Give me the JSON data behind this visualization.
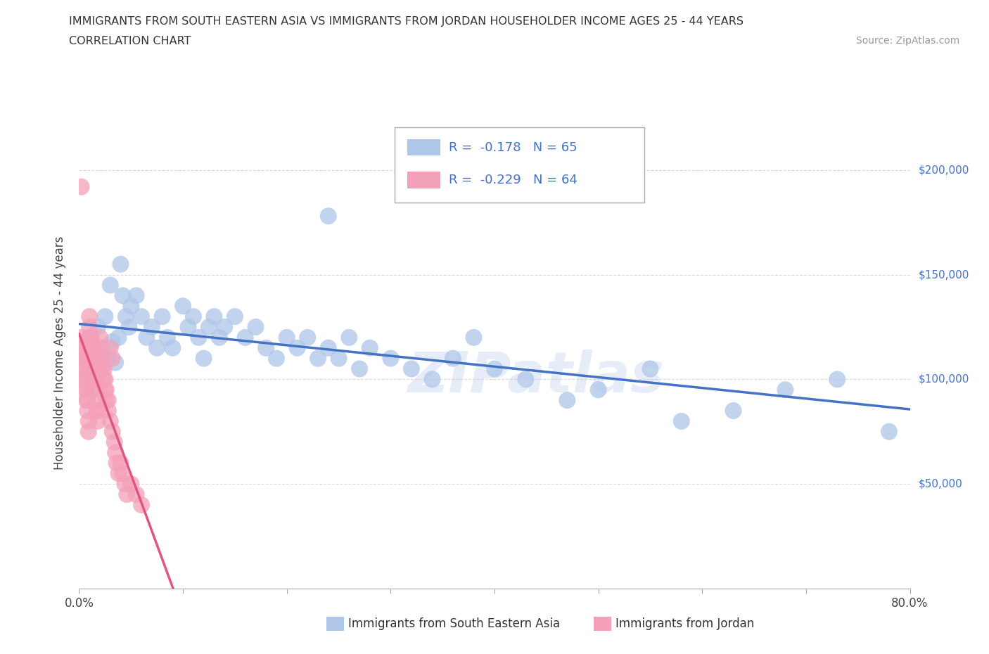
{
  "title_line1": "IMMIGRANTS FROM SOUTH EASTERN ASIA VS IMMIGRANTS FROM JORDAN HOUSEHOLDER INCOME AGES 25 - 44 YEARS",
  "title_line2": "CORRELATION CHART",
  "source_text": "Source: ZipAtlas.com",
  "ylabel": "Householder Income Ages 25 - 44 years",
  "xlim": [
    0,
    0.8
  ],
  "ylim": [
    0,
    225000
  ],
  "yticks": [
    50000,
    100000,
    150000,
    200000
  ],
  "ytick_labels": [
    "$50,000",
    "$100,000",
    "$150,000",
    "$200,000"
  ],
  "xticks": [
    0.0,
    0.1,
    0.2,
    0.3,
    0.4,
    0.5,
    0.6,
    0.7,
    0.8
  ],
  "grid_color": "#d0d0d0",
  "background_color": "#ffffff",
  "watermark_text": "ZIPatlas",
  "series1_color": "#aec6e8",
  "series2_color": "#f4a0b8",
  "series1_label": "Immigrants from South Eastern Asia",
  "series2_label": "Immigrants from Jordan",
  "series1_R": -0.178,
  "series1_N": 65,
  "series2_R": -0.229,
  "series2_N": 64,
  "series1_line_color": "#4472c4",
  "series2_line_color": "#e05580",
  "series2_line_dash_color": "#f4a0b8",
  "legend_box_color": "#4472c4",
  "tick_label_color": "#4472c4",
  "series1_x": [
    0.005,
    0.008,
    0.01,
    0.012,
    0.015,
    0.018,
    0.02,
    0.022,
    0.025,
    0.028,
    0.03,
    0.032,
    0.035,
    0.038,
    0.04,
    0.042,
    0.045,
    0.048,
    0.05,
    0.055,
    0.06,
    0.065,
    0.07,
    0.075,
    0.08,
    0.085,
    0.09,
    0.1,
    0.105,
    0.11,
    0.115,
    0.12,
    0.125,
    0.13,
    0.135,
    0.14,
    0.15,
    0.16,
    0.17,
    0.18,
    0.19,
    0.2,
    0.21,
    0.22,
    0.23,
    0.24,
    0.25,
    0.26,
    0.27,
    0.28,
    0.3,
    0.32,
    0.34,
    0.36,
    0.38,
    0.4,
    0.43,
    0.47,
    0.5,
    0.55,
    0.58,
    0.63,
    0.68,
    0.73,
    0.78
  ],
  "series1_y": [
    110000,
    100000,
    120000,
    95000,
    108000,
    125000,
    105000,
    115000,
    130000,
    110000,
    145000,
    118000,
    108000,
    120000,
    155000,
    140000,
    130000,
    125000,
    135000,
    140000,
    130000,
    120000,
    125000,
    115000,
    130000,
    120000,
    115000,
    135000,
    125000,
    130000,
    120000,
    110000,
    125000,
    130000,
    120000,
    125000,
    130000,
    120000,
    125000,
    115000,
    110000,
    120000,
    115000,
    120000,
    110000,
    115000,
    110000,
    120000,
    105000,
    115000,
    110000,
    105000,
    100000,
    110000,
    120000,
    105000,
    100000,
    90000,
    95000,
    105000,
    80000,
    85000,
    95000,
    100000,
    75000
  ],
  "series2_x": [
    0.002,
    0.002,
    0.003,
    0.003,
    0.004,
    0.004,
    0.005,
    0.005,
    0.006,
    0.006,
    0.007,
    0.007,
    0.008,
    0.008,
    0.009,
    0.009,
    0.01,
    0.01,
    0.01,
    0.01,
    0.01,
    0.01,
    0.012,
    0.012,
    0.013,
    0.013,
    0.014,
    0.014,
    0.015,
    0.015,
    0.016,
    0.016,
    0.017,
    0.017,
    0.018,
    0.018,
    0.02,
    0.02,
    0.02,
    0.022,
    0.022,
    0.024,
    0.024,
    0.025,
    0.025,
    0.026,
    0.026,
    0.028,
    0.028,
    0.03,
    0.03,
    0.032,
    0.032,
    0.034,
    0.035,
    0.036,
    0.038,
    0.04,
    0.042,
    0.044,
    0.046,
    0.05,
    0.055,
    0.06
  ],
  "series2_y": [
    120000,
    115000,
    115000,
    110000,
    110000,
    105000,
    105000,
    100000,
    100000,
    95000,
    95000,
    90000,
    90000,
    85000,
    80000,
    75000,
    130000,
    125000,
    120000,
    115000,
    110000,
    105000,
    120000,
    115000,
    115000,
    110000,
    110000,
    105000,
    105000,
    100000,
    100000,
    95000,
    90000,
    85000,
    85000,
    80000,
    120000,
    115000,
    110000,
    110000,
    105000,
    105000,
    100000,
    100000,
    95000,
    95000,
    90000,
    90000,
    85000,
    115000,
    80000,
    110000,
    75000,
    70000,
    65000,
    60000,
    55000,
    60000,
    55000,
    50000,
    45000,
    50000,
    45000,
    40000
  ],
  "series2_outlier_x": [
    0.002
  ],
  "series2_outlier_y": [
    192000
  ],
  "series1_blue_outlier_x": [
    0.24
  ],
  "series1_blue_outlier_y": [
    178000
  ]
}
